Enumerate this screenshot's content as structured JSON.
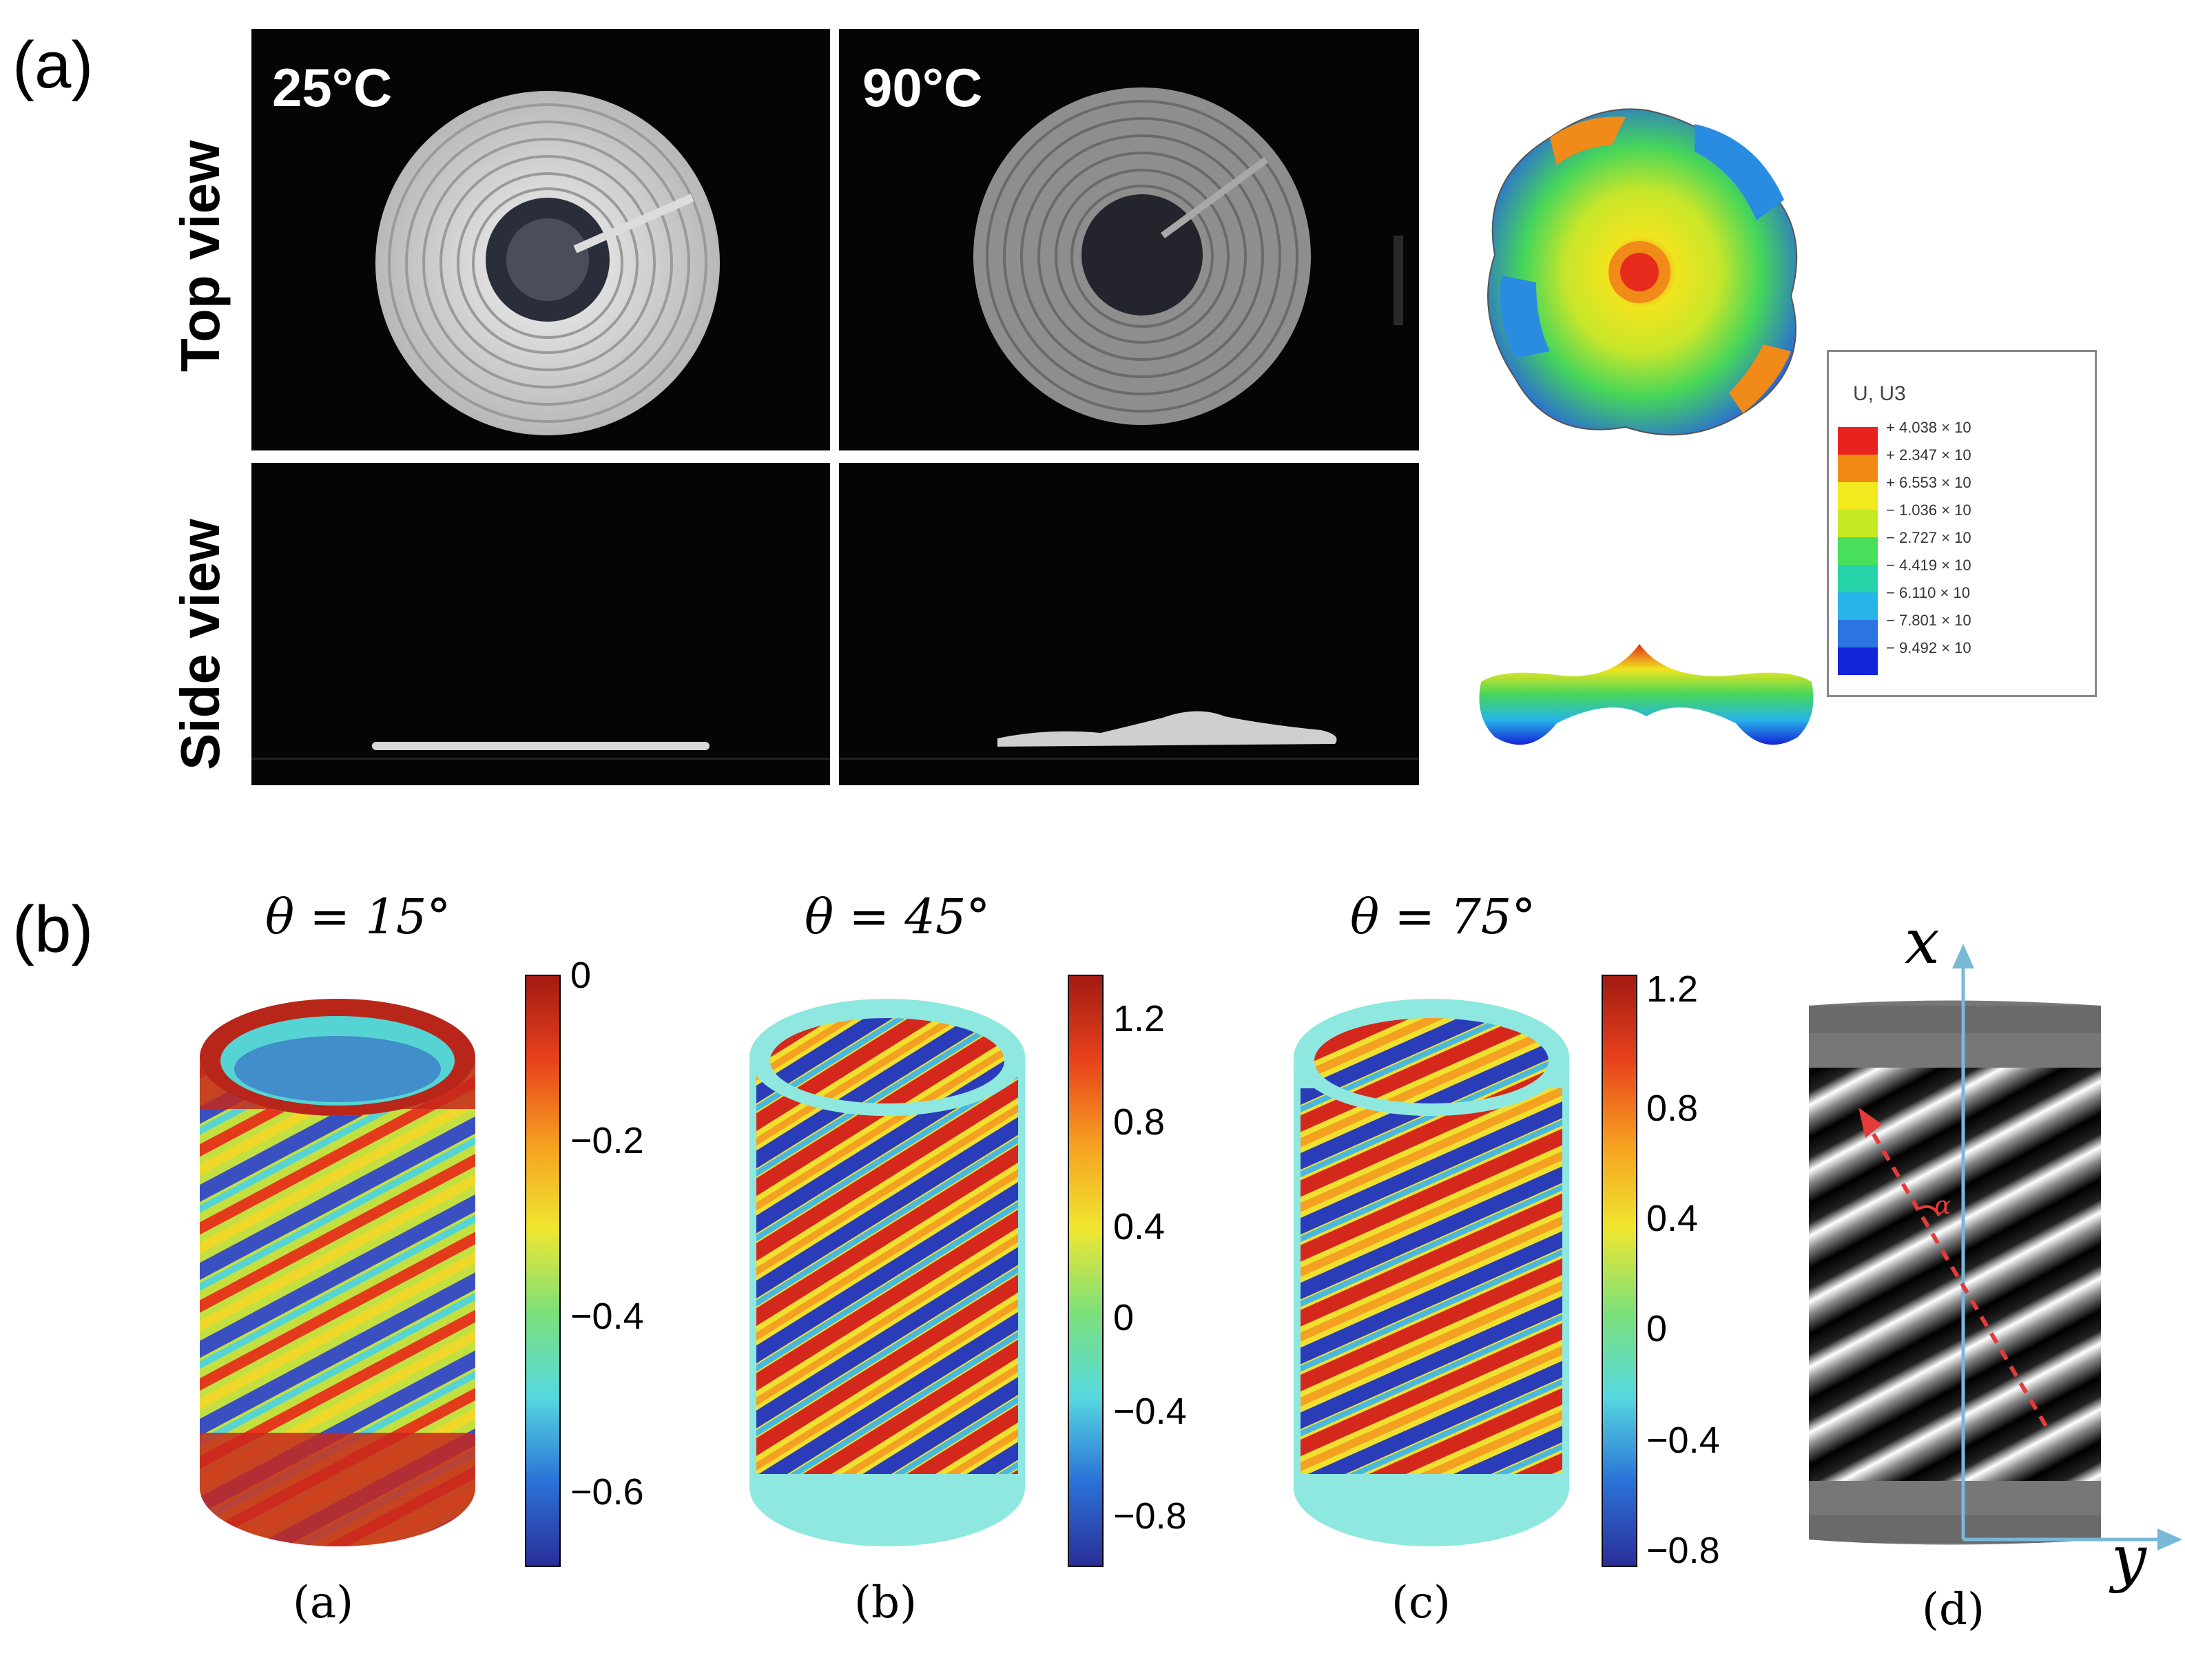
{
  "panel_a": {
    "letter": "(a)",
    "temps": [
      "25°C",
      "90°C"
    ],
    "row_labels": [
      "Top view",
      "Side view"
    ],
    "legend": {
      "title": "U, U3",
      "colors": [
        "#e8221e",
        "#f28a16",
        "#f4e81e",
        "#c4ea24",
        "#48e05a",
        "#24d4a8",
        "#28b4e8",
        "#2c74e0",
        "#1424d8"
      ],
      "values": [
        "+ 4.038 × 10",
        "+ 2.347 × 10",
        "+ 6.553 × 10",
        "− 1.036 × 10",
        "− 2.727 × 10",
        "− 4.419 × 10",
        "− 6.110 × 10",
        "− 7.801 × 10",
        "− 9.492 × 10"
      ]
    }
  },
  "panel_b": {
    "letter": "(b)",
    "figures": [
      {
        "theta": "θ = 15°",
        "label": "(a)",
        "ticks": [
          "0",
          "−0.2",
          "−0.4",
          "−0.6"
        ]
      },
      {
        "theta": "θ = 45°",
        "label": "(b)",
        "ticks": [
          "1.2",
          "0.8",
          "0.4",
          "0",
          "−0.4",
          "−0.8"
        ]
      },
      {
        "theta": "θ = 75°",
        "label": "(c)",
        "ticks": [
          "1.2",
          "0.8",
          "0.4",
          "0",
          "−0.4",
          "−0.8"
        ]
      }
    ],
    "fourth": {
      "label": "(d)",
      "x_axis": "x",
      "y_axis": "y",
      "angle": "α"
    }
  }
}
